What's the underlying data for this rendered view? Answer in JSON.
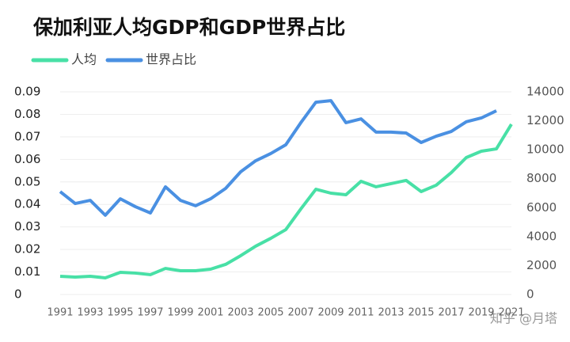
{
  "chart_data": {
    "type": "line",
    "title": "保加利亚人均GDP和GDP世界占比",
    "watermark": "知乎 @月塔",
    "x": [
      1991,
      1992,
      1993,
      1994,
      1995,
      1996,
      1997,
      1998,
      1999,
      2000,
      2001,
      2002,
      2003,
      2004,
      2005,
      2006,
      2007,
      2008,
      2009,
      2010,
      2011,
      2012,
      2013,
      2014,
      2015,
      2016,
      2017,
      2018,
      2019,
      2020,
      2021
    ],
    "xlim": [
      1991,
      2021
    ],
    "xticks": [
      1991,
      1993,
      1995,
      1997,
      1999,
      2001,
      2003,
      2005,
      2007,
      2009,
      2011,
      2013,
      2015,
      2017,
      2019,
      2021
    ],
    "ylim": [
      0,
      0.09
    ],
    "yticks": [
      0,
      0.01,
      0.02,
      0.03,
      0.04,
      0.05,
      0.06,
      0.07,
      0.08,
      0.09
    ],
    "y2lim": [
      0,
      14000
    ],
    "y2ticks": [
      0,
      2000,
      4000,
      6000,
      8000,
      10000,
      12000,
      14000
    ],
    "grid": true,
    "legend": "top-left",
    "series": [
      {
        "name": "人均",
        "color": "#48e0a6",
        "axis": "y2",
        "values": [
          1260,
          1200,
          1260,
          1150,
          1530,
          1480,
          1370,
          1800,
          1640,
          1640,
          1750,
          2080,
          2680,
          3340,
          3880,
          4480,
          5910,
          7270,
          7000,
          6890,
          7820,
          7440,
          7660,
          7880,
          7110,
          7550,
          8420,
          9460,
          9900,
          10060,
          11760
        ]
      },
      {
        "name": "世界占比",
        "color": "#4a90e2",
        "axis": "y",
        "values": [
          0.0457,
          0.0404,
          0.0418,
          0.0352,
          0.0425,
          0.039,
          0.0362,
          0.0478,
          0.0418,
          0.0394,
          0.0425,
          0.0471,
          0.0545,
          0.0594,
          0.0626,
          0.0665,
          0.0763,
          0.0854,
          0.0861,
          0.0763,
          0.078,
          0.0721,
          0.0721,
          0.0717,
          0.0675,
          0.0703,
          0.0724,
          0.0767,
          0.0784,
          0.0816,
          null
        ]
      }
    ]
  }
}
